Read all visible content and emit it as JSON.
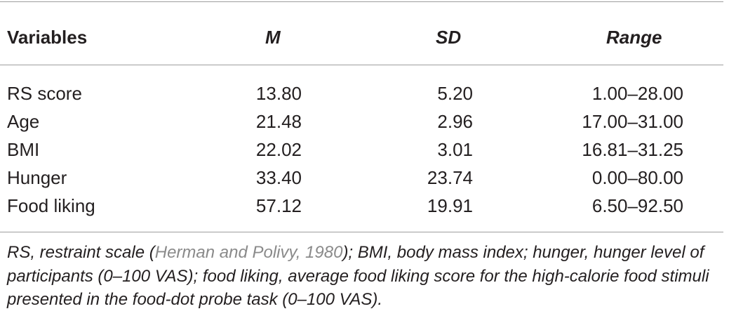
{
  "table": {
    "headers": {
      "variables": "Variables",
      "m": "M",
      "sd": "SD",
      "range": "Range"
    },
    "rows": [
      {
        "variable": "RS score",
        "m": "13.80",
        "sd": "5.20",
        "range": "1.00–28.00"
      },
      {
        "variable": "Age",
        "m": "21.48",
        "sd": "2.96",
        "range": "17.00–31.00"
      },
      {
        "variable": "BMI",
        "m": "22.02",
        "sd": "3.01",
        "range": "16.81–31.25"
      },
      {
        "variable": "Hunger",
        "m": "33.40",
        "sd": "23.74",
        "range": "0.00–80.00"
      },
      {
        "variable": "Food liking",
        "m": "57.12",
        "sd": "19.91",
        "range": "6.50–92.50"
      }
    ]
  },
  "footnote": {
    "before": "RS, restraint scale (",
    "citation": "Herman and Polivy, 1980",
    "after": "); BMI, body mass index; hunger, hunger level of participants (0–100 VAS); food liking, average food liking score for the high-calorie food stimuli presented in the food-dot probe task (0–100 VAS)."
  }
}
